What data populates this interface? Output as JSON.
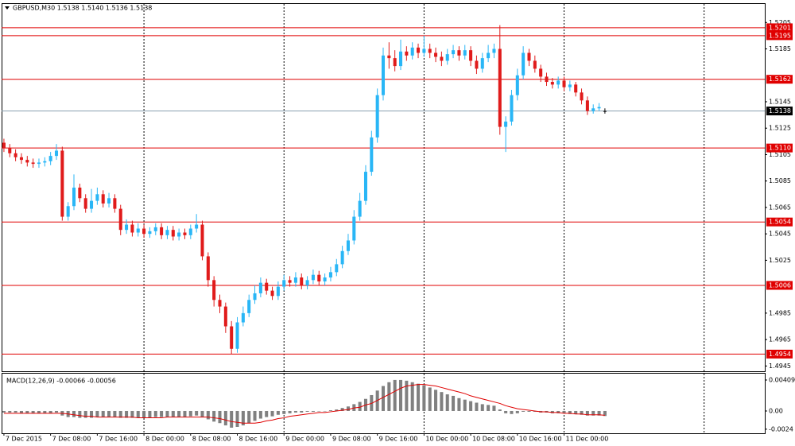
{
  "chart_data": [
    {
      "type": "candlestick",
      "title": "GBPUSD,M30  1.5138 1.5140 1.5136 1.5138",
      "open": [
        1.5114,
        1.511,
        1.5106,
        1.5103,
        1.5101,
        1.5099,
        1.5098,
        1.5099,
        1.51,
        1.5104,
        1.5108,
        1.5058,
        1.5066,
        1.508,
        1.5072,
        1.5064,
        1.507,
        1.5075,
        1.5068,
        1.5072,
        1.5064,
        1.5048,
        1.5052,
        1.5046,
        1.5049,
        1.5045,
        1.5047,
        1.505,
        1.5044,
        1.5048,
        1.5043,
        1.5046,
        1.5044,
        1.5049,
        1.5052,
        1.5028,
        1.501,
        1.4995,
        1.499,
        1.4975,
        1.4958,
        1.4978,
        1.4985,
        1.4995,
        1.5,
        1.5008,
        1.5002,
        1.4998,
        1.5005,
        1.501,
        1.5008,
        1.5012,
        1.5006,
        1.501,
        1.5014,
        1.5009,
        1.5012,
        1.5016,
        1.5022,
        1.5032,
        1.504,
        1.5058,
        1.507,
        1.5092,
        1.5118,
        1.515,
        1.518,
        1.5178,
        1.5172,
        1.5183,
        1.518,
        1.5186,
        1.5182,
        1.5185,
        1.5182,
        1.5179,
        1.5176,
        1.5181,
        1.5184,
        1.518,
        1.5184,
        1.5176,
        1.517,
        1.5178,
        1.5182,
        1.5185,
        1.5126,
        1.513,
        1.515,
        1.5165,
        1.5182,
        1.5176,
        1.517,
        1.5164,
        1.516,
        1.5158,
        1.5161,
        1.5156,
        1.5158,
        1.5152,
        1.5146,
        1.5138,
        1.514,
        1.5138
      ],
      "high": [
        1.5117,
        1.5113,
        1.5109,
        1.5106,
        1.5104,
        1.5102,
        1.5102,
        1.5103,
        1.5107,
        1.5113,
        1.5111,
        1.5069,
        1.509,
        1.5083,
        1.5075,
        1.5079,
        1.508,
        1.5078,
        1.5076,
        1.5075,
        1.5067,
        1.5056,
        1.5055,
        1.5053,
        1.5052,
        1.505,
        1.5053,
        1.5053,
        1.5051,
        1.5051,
        1.5049,
        1.5049,
        1.5052,
        1.506,
        1.5055,
        1.5031,
        1.5013,
        1.4999,
        1.4993,
        1.4979,
        1.4982,
        1.499,
        1.4999,
        1.5006,
        1.5012,
        1.5011,
        1.5005,
        1.5009,
        1.5014,
        1.5013,
        1.5016,
        1.5015,
        1.5013,
        1.5018,
        1.5017,
        1.5015,
        1.502,
        1.5026,
        1.5036,
        1.5045,
        1.5063,
        1.5076,
        1.5097,
        1.5123,
        1.5155,
        1.5186,
        1.519,
        1.5184,
        1.5192,
        1.5187,
        1.519,
        1.5189,
        1.5195,
        1.5189,
        1.5186,
        1.5183,
        1.5185,
        1.5188,
        1.5187,
        1.5188,
        1.5187,
        1.518,
        1.5182,
        1.5188,
        1.5189,
        1.5203,
        1.5134,
        1.5154,
        1.517,
        1.5187,
        1.5185,
        1.518,
        1.5173,
        1.5167,
        1.5163,
        1.5164,
        1.5164,
        1.5161,
        1.516,
        1.5155,
        1.5149,
        1.5143,
        1.5144,
        1.514
      ],
      "low": [
        1.5107,
        1.5103,
        1.51,
        1.5098,
        1.5096,
        1.5095,
        1.5095,
        1.5096,
        1.5097,
        1.5101,
        1.5055,
        1.5055,
        1.5063,
        1.5069,
        1.5061,
        1.5061,
        1.5067,
        1.5065,
        1.5065,
        1.5061,
        1.5044,
        1.5045,
        1.5043,
        1.5043,
        1.5042,
        1.5042,
        1.5044,
        1.5041,
        1.5041,
        1.504,
        1.504,
        1.5041,
        1.5041,
        1.5046,
        1.5025,
        1.5005,
        1.499,
        1.4985,
        1.497,
        1.4954,
        1.4955,
        1.4975,
        1.4982,
        1.4992,
        1.4997,
        1.4999,
        1.4995,
        1.4995,
        1.5002,
        1.5005,
        1.5005,
        1.5003,
        1.5003,
        1.5007,
        1.5006,
        1.5006,
        1.5009,
        1.5013,
        1.5019,
        1.5029,
        1.5037,
        1.5055,
        1.5067,
        1.5089,
        1.5114,
        1.5146,
        1.517,
        1.5168,
        1.5169,
        1.5176,
        1.5177,
        1.5178,
        1.5179,
        1.5178,
        1.5175,
        1.5172,
        1.5173,
        1.5178,
        1.5176,
        1.5177,
        1.5172,
        1.5166,
        1.5167,
        1.5175,
        1.5178,
        1.512,
        1.5107,
        1.5127,
        1.5146,
        1.5162,
        1.5172,
        1.5167,
        1.516,
        1.5157,
        1.5155,
        1.5155,
        1.5153,
        1.5153,
        1.5149,
        1.5143,
        1.5135,
        1.5136,
        1.5138,
        1.5136
      ],
      "close": [
        1.511,
        1.5106,
        1.5103,
        1.5101,
        1.5099,
        1.5098,
        1.5099,
        1.51,
        1.5104,
        1.5108,
        1.5058,
        1.5066,
        1.508,
        1.5072,
        1.5064,
        1.507,
        1.5075,
        1.5068,
        1.5072,
        1.5064,
        1.5048,
        1.5052,
        1.5046,
        1.5049,
        1.5045,
        1.5047,
        1.505,
        1.5044,
        1.5048,
        1.5043,
        1.5046,
        1.5044,
        1.5049,
        1.5052,
        1.5028,
        1.501,
        1.4995,
        1.499,
        1.4975,
        1.4958,
        1.4978,
        1.4985,
        1.4995,
        1.5,
        1.5008,
        1.5002,
        1.4998,
        1.5005,
        1.501,
        1.5008,
        1.5012,
        1.5006,
        1.501,
        1.5014,
        1.5009,
        1.5012,
        1.5016,
        1.5022,
        1.5032,
        1.504,
        1.5058,
        1.507,
        1.5092,
        1.5118,
        1.515,
        1.518,
        1.5178,
        1.5172,
        1.5183,
        1.518,
        1.5186,
        1.5182,
        1.5185,
        1.5182,
        1.5179,
        1.5176,
        1.5181,
        1.5184,
        1.518,
        1.5184,
        1.5176,
        1.517,
        1.5178,
        1.5182,
        1.5185,
        1.5126,
        1.513,
        1.515,
        1.5165,
        1.5182,
        1.5176,
        1.517,
        1.5164,
        1.516,
        1.5158,
        1.5161,
        1.5156,
        1.5158,
        1.5152,
        1.5146,
        1.5138,
        1.514,
        1.5141,
        1.5138
      ],
      "up_color": "#29b6f6",
      "down_color": "#e01b1b",
      "xlim": [
        -0.4,
        130.4
      ],
      "xticks": [
        {
          "value": 0,
          "label": "7 Dec 2015"
        },
        {
          "value": 8,
          "label": "7 Dec 08:00"
        },
        {
          "value": 16,
          "label": "7 Dec 16:00"
        },
        {
          "value": 24,
          "label": "8 Dec 00:00"
        },
        {
          "value": 32,
          "label": "8 Dec 08:00"
        },
        {
          "value": 40,
          "label": "8 Dec 16:00"
        },
        {
          "value": 48,
          "label": "9 Dec 00:00"
        },
        {
          "value": 56,
          "label": "9 Dec 08:00"
        },
        {
          "value": 64,
          "label": "9 Dec 16:00"
        },
        {
          "value": 72,
          "label": "10 Dec 00:00"
        },
        {
          "value": 80,
          "label": "10 Dec 08:00"
        },
        {
          "value": 88,
          "label": "10 Dec 16:00"
        },
        {
          "value": 96,
          "label": "11 Dec 00:00"
        }
      ],
      "separators": [
        24,
        48,
        72,
        96,
        120
      ],
      "ylim": [
        1.4941,
        1.5219
      ],
      "yticks": [
        1.4945,
        1.4965,
        1.4985,
        1.5025,
        1.5045,
        1.5065,
        1.5085,
        1.5105,
        1.5125,
        1.5145,
        1.5185,
        1.5205
      ],
      "levels": [
        1.5201,
        1.5195,
        1.5162,
        {
          "value": 1.511,
          "label": "1.5110"
        },
        1.5054,
        1.5006,
        1.4954
      ],
      "level_color": "#e00000",
      "current": 1.5138
    },
    {
      "type": "macd",
      "title": "MACD(12,26,9) -0.00066 -0.00056",
      "histogram": [
        -0.0002,
        -0.0002,
        -0.0002,
        -0.0003,
        -0.0003,
        -0.0003,
        -0.0003,
        -0.0003,
        -0.0003,
        -0.0002,
        -0.0006,
        -0.0008,
        -0.0008,
        -0.0009,
        -0.0009,
        -0.0009,
        -0.0008,
        -0.0008,
        -0.0008,
        -0.0008,
        -0.0009,
        -0.0009,
        -0.0009,
        -0.0009,
        -0.0009,
        -0.0009,
        -0.0008,
        -0.0008,
        -0.0008,
        -0.0008,
        -0.0008,
        -0.0008,
        -0.0007,
        -0.0006,
        -0.0008,
        -0.0011,
        -0.0014,
        -0.0016,
        -0.0019,
        -0.0022,
        -0.0021,
        -0.0019,
        -0.0016,
        -0.0013,
        -0.001,
        -0.0008,
        -0.0007,
        -0.0005,
        -0.0004,
        -0.0003,
        -0.0002,
        -0.0002,
        -0.0001,
        -0.0001,
        0,
        0,
        0.0001,
        0.0002,
        0.0004,
        0.0006,
        0.0009,
        0.0012,
        0.0016,
        0.0021,
        0.0027,
        0.0033,
        0.0038,
        0.0041,
        0.0041,
        0.004,
        0.0038,
        0.0036,
        0.0034,
        0.0031,
        0.0028,
        0.0025,
        0.0022,
        0.002,
        0.0017,
        0.0015,
        0.0013,
        0.0011,
        0.0009,
        0.0008,
        0.0007,
        0.0002,
        -0.0003,
        -0.0004,
        -0.0003,
        -0.0001,
        -0.0001,
        -0.0001,
        -0.0002,
        -0.0002,
        -0.0003,
        -0.0003,
        -0.0003,
        -0.0004,
        -0.0004,
        -0.0005,
        -0.0006,
        -0.0006,
        -0.0006,
        -0.00066
      ],
      "signal": [
        -0.0003,
        -0.0003,
        -0.0003,
        -0.0003,
        -0.0003,
        -0.0003,
        -0.0003,
        -0.0003,
        -0.0003,
        -0.0003,
        -0.0003,
        -0.0004,
        -0.0005,
        -0.0006,
        -0.0007,
        -0.0007,
        -0.0008,
        -0.0008,
        -0.0008,
        -0.0008,
        -0.0008,
        -0.0008,
        -0.0008,
        -0.0009,
        -0.0009,
        -0.0009,
        -0.0009,
        -0.0009,
        -0.0008,
        -0.0008,
        -0.0008,
        -0.0008,
        -0.0008,
        -0.0008,
        -0.0008,
        -0.0008,
        -0.0009,
        -0.001,
        -0.0012,
        -0.0014,
        -0.0015,
        -0.0016,
        -0.0016,
        -0.0016,
        -0.0015,
        -0.0013,
        -0.0012,
        -0.001,
        -0.0009,
        -0.0007,
        -0.0006,
        -0.0005,
        -0.0004,
        -0.0003,
        -0.0002,
        -0.0002,
        -0.0001,
        0,
        0.0001,
        0.0002,
        0.0004,
        0.0005,
        0.0008,
        0.001,
        0.0014,
        0.0018,
        0.0022,
        0.0026,
        0.003,
        0.0033,
        0.0034,
        0.0035,
        0.0035,
        0.0034,
        0.0033,
        0.0031,
        0.0029,
        0.0027,
        0.0025,
        0.0023,
        0.002,
        0.0018,
        0.0016,
        0.0014,
        0.0012,
        0.001,
        0.0007,
        0.0005,
        0.0003,
        0.0002,
        0.0001,
        0,
        -0.0001,
        -0.0001,
        -0.0002,
        -0.0002,
        -0.0003,
        -0.0003,
        -0.0004,
        -0.0004,
        -0.0005,
        -0.0005,
        -0.0005,
        -0.00056
      ],
      "histogram_color": "#808080",
      "signal_color": "#e00000",
      "ylim": [
        -0.00294,
        0.00493
      ],
      "yticks": [
        -0.0024,
        {
          "value": 0,
          "label": "0.00"
        },
        0.00409
      ]
    }
  ]
}
